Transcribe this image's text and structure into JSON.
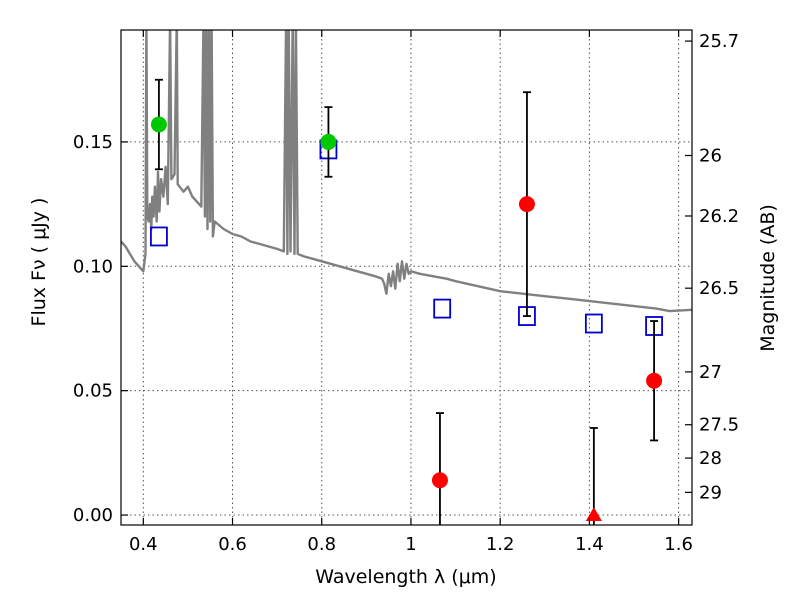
{
  "chart_data": {
    "type": "scatter",
    "title": "",
    "xlabel": "Wavelength  λ (μm)",
    "ylabel": "Flux  Fν  ( μJy )",
    "ylabel_right": "Magnitude (AB)",
    "xlim": [
      0.35,
      1.63
    ],
    "ylim": [
      -0.004,
      0.195
    ],
    "x_ticks": [
      0.4,
      0.6,
      0.8,
      1.0,
      1.2,
      1.4,
      1.6
    ],
    "x_tick_labels": [
      "0.4",
      "0.6",
      "0.8",
      "1",
      "1.2",
      "1.4",
      "1.6"
    ],
    "y_ticks": [
      0.0,
      0.05,
      0.1,
      0.15
    ],
    "y_tick_labels": [
      "0.00",
      "0.05",
      "0.10",
      "0.15"
    ],
    "right_ticks": [
      {
        "label": "25.7",
        "mag": 25.7
      },
      {
        "label": "26",
        "mag": 26.0
      },
      {
        "label": "26.2",
        "mag": 26.2
      },
      {
        "label": "26.5",
        "mag": 26.5
      },
      {
        "label": "27",
        "mag": 27.0
      },
      {
        "label": "27.5",
        "mag": 27.5
      },
      {
        "label": "28",
        "mag": 28.0
      },
      {
        "label": "29",
        "mag": 29.0
      }
    ],
    "grid": true,
    "colors": {
      "detection_green": "#00c800",
      "detection_red": "#ff0000",
      "model": "#0000cc",
      "spectrum": "#808080",
      "errorbar": "#000000"
    },
    "series": [
      {
        "name": "observed (green)",
        "marker": "circle",
        "color": "#00c800",
        "points": [
          {
            "x": 0.435,
            "y": 0.157,
            "err": 0.018
          },
          {
            "x": 0.815,
            "y": 0.15,
            "err": 0.014
          }
        ]
      },
      {
        "name": "observed (red)",
        "marker": "circle",
        "color": "#ff0000",
        "points": [
          {
            "x": 1.065,
            "y": 0.014,
            "err": 0.027
          },
          {
            "x": 1.26,
            "y": 0.125,
            "err": 0.045
          },
          {
            "x": 1.545,
            "y": 0.054,
            "err": 0.024
          }
        ]
      },
      {
        "name": "upper limit",
        "marker": "triangle",
        "color": "#ff0000",
        "points": [
          {
            "x": 1.41,
            "y": 0.0,
            "err": 0.035
          }
        ]
      },
      {
        "name": "model photometry",
        "marker": "square",
        "color": "#0000cc",
        "points": [
          {
            "x": 0.435,
            "y": 0.112
          },
          {
            "x": 0.815,
            "y": 0.147
          },
          {
            "x": 1.07,
            "y": 0.083
          },
          {
            "x": 1.26,
            "y": 0.08
          },
          {
            "x": 1.41,
            "y": 0.077
          },
          {
            "x": 1.545,
            "y": 0.076
          }
        ]
      },
      {
        "name": "model spectrum",
        "marker": "line",
        "color": "#808080",
        "points": [
          [
            0.35,
            0.11
          ],
          [
            0.36,
            0.108
          ],
          [
            0.37,
            0.105
          ],
          [
            0.38,
            0.102
          ],
          [
            0.39,
            0.1
          ],
          [
            0.4,
            0.098
          ],
          [
            0.405,
            0.105
          ],
          [
            0.407,
            0.2
          ],
          [
            0.409,
            0.12
          ],
          [
            0.412,
            0.118
          ],
          [
            0.415,
            0.125
          ],
          [
            0.418,
            0.115
          ],
          [
            0.42,
            0.128
          ],
          [
            0.423,
            0.12
          ],
          [
            0.426,
            0.132
          ],
          [
            0.43,
            0.118
          ],
          [
            0.433,
            0.138
          ],
          [
            0.436,
            0.122
          ],
          [
            0.44,
            0.135
          ],
          [
            0.445,
            0.128
          ],
          [
            0.45,
            0.14
          ],
          [
            0.455,
            0.125
          ],
          [
            0.46,
            0.2
          ],
          [
            0.463,
            0.135
          ],
          [
            0.47,
            0.137
          ],
          [
            0.475,
            0.2
          ],
          [
            0.477,
            0.133
          ],
          [
            0.49,
            0.13
          ],
          [
            0.5,
            0.132
          ],
          [
            0.51,
            0.128
          ],
          [
            0.52,
            0.126
          ],
          [
            0.53,
            0.124
          ],
          [
            0.535,
            0.2
          ],
          [
            0.538,
            0.12
          ],
          [
            0.541,
            0.2
          ],
          [
            0.544,
            0.115
          ],
          [
            0.547,
            0.2
          ],
          [
            0.55,
            0.118
          ],
          [
            0.553,
            0.2
          ],
          [
            0.556,
            0.112
          ],
          [
            0.56,
            0.118
          ],
          [
            0.58,
            0.115
          ],
          [
            0.6,
            0.113
          ],
          [
            0.62,
            0.112
          ],
          [
            0.64,
            0.11
          ],
          [
            0.66,
            0.109
          ],
          [
            0.68,
            0.108
          ],
          [
            0.7,
            0.107
          ],
          [
            0.715,
            0.106
          ],
          [
            0.72,
            0.2
          ],
          [
            0.723,
            0.105
          ],
          [
            0.726,
            0.2
          ],
          [
            0.73,
            0.106
          ],
          [
            0.735,
            0.2
          ],
          [
            0.739,
            0.105
          ],
          [
            0.742,
            0.2
          ],
          [
            0.746,
            0.105
          ],
          [
            0.76,
            0.104
          ],
          [
            0.78,
            0.103
          ],
          [
            0.8,
            0.102
          ],
          [
            0.82,
            0.101
          ],
          [
            0.84,
            0.1
          ],
          [
            0.86,
            0.099
          ],
          [
            0.88,
            0.098
          ],
          [
            0.9,
            0.097
          ],
          [
            0.92,
            0.096
          ],
          [
            0.935,
            0.095
          ],
          [
            0.94,
            0.093
          ],
          [
            0.945,
            0.089
          ],
          [
            0.95,
            0.097
          ],
          [
            0.955,
            0.092
          ],
          [
            0.96,
            0.098
          ],
          [
            0.965,
            0.091
          ],
          [
            0.97,
            0.101
          ],
          [
            0.975,
            0.094
          ],
          [
            0.98,
            0.102
          ],
          [
            0.985,
            0.095
          ],
          [
            0.99,
            0.101
          ],
          [
            0.995,
            0.097
          ],
          [
            1.0,
            0.098
          ],
          [
            1.02,
            0.097
          ],
          [
            1.05,
            0.096
          ],
          [
            1.08,
            0.095
          ],
          [
            1.1,
            0.094
          ],
          [
            1.15,
            0.092
          ],
          [
            1.2,
            0.09
          ],
          [
            1.25,
            0.089
          ],
          [
            1.3,
            0.088
          ],
          [
            1.35,
            0.087
          ],
          [
            1.4,
            0.086
          ],
          [
            1.45,
            0.085
          ],
          [
            1.5,
            0.084
          ],
          [
            1.55,
            0.083
          ],
          [
            1.58,
            0.082
          ],
          [
            1.63,
            0.0825
          ]
        ]
      }
    ]
  }
}
